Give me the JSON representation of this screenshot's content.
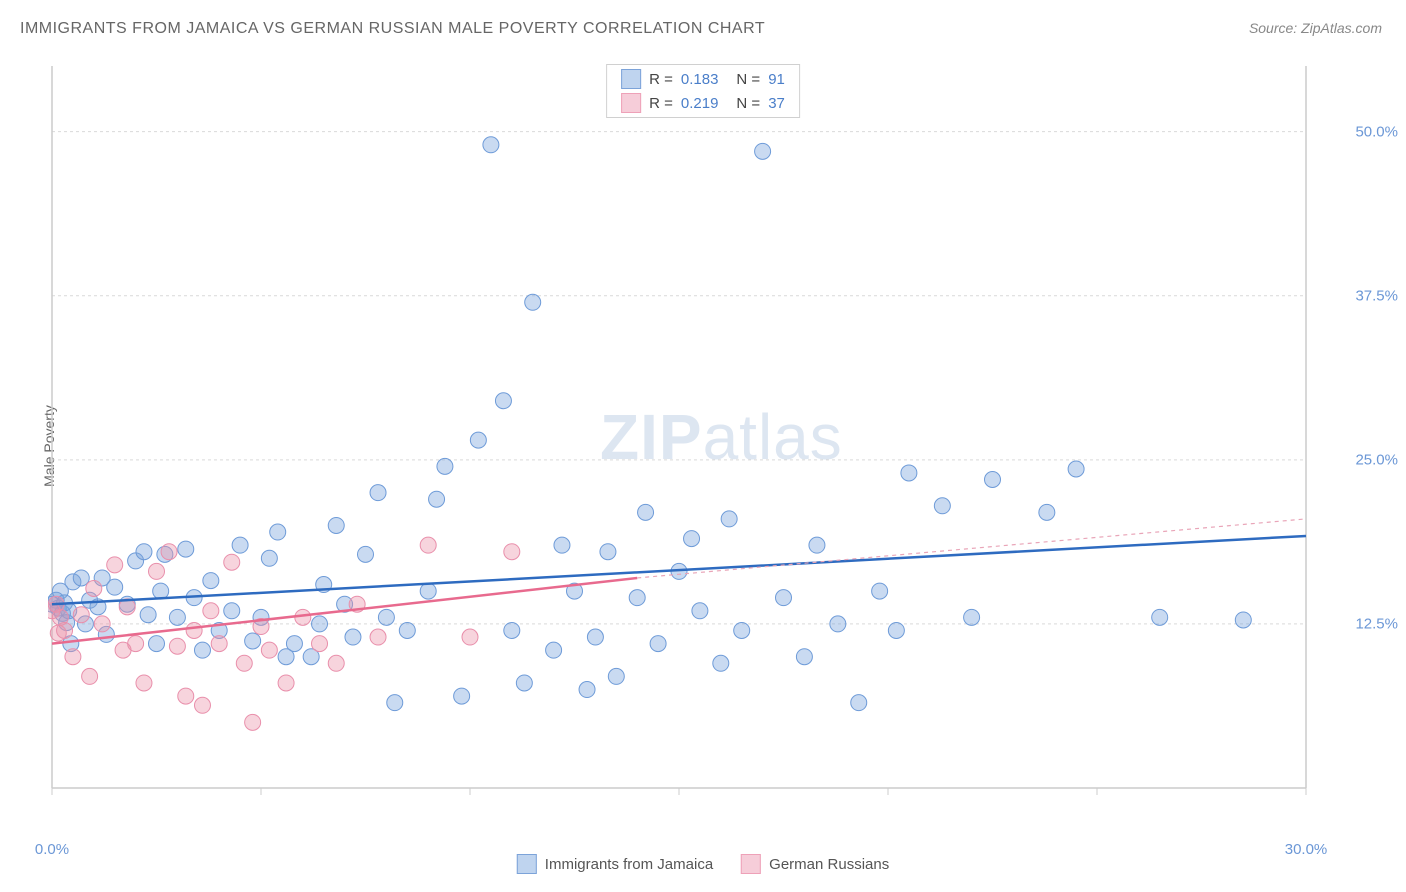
{
  "title": "IMMIGRANTS FROM JAMAICA VS GERMAN RUSSIAN MALE POVERTY CORRELATION CHART",
  "source": "Source: ZipAtlas.com",
  "y_axis_label": "Male Poverty",
  "watermark_bold": "ZIP",
  "watermark_rest": "atlas",
  "chart": {
    "type": "scatter",
    "xlim": [
      0,
      30
    ],
    "ylim": [
      0,
      55
    ],
    "x_ticks": [
      0,
      5,
      10,
      15,
      20,
      25,
      30
    ],
    "x_tick_labels": {
      "0": "0.0%",
      "30": "30.0%"
    },
    "y_grid": [
      12.5,
      25.0,
      37.5,
      50.0
    ],
    "y_tick_labels": {
      "12.5": "12.5%",
      "25.0": "25.0%",
      "37.5": "37.5%",
      "50.0": "50.0%"
    },
    "background_color": "#ffffff",
    "grid_color": "#d9d9d9",
    "axis_color": "#cccccc",
    "marker_radius": 8,
    "marker_stroke_width": 1,
    "series": [
      {
        "name": "Immigrants from Jamaica",
        "fill": "rgba(120,163,219,0.40)",
        "stroke": "#6e9bd8",
        "swatch_fill": "#bfd4ef",
        "swatch_stroke": "#7ca3d9",
        "R": "0.183",
        "N": "91",
        "line": {
          "x1": 0,
          "y1": 14.0,
          "x2": 30,
          "y2": 19.2,
          "color": "#2e6bc0",
          "width": 2.5,
          "dash": ""
        },
        "points": [
          [
            0.0,
            14.0
          ],
          [
            0.1,
            14.3
          ],
          [
            0.15,
            13.7
          ],
          [
            0.2,
            15.0
          ],
          [
            0.25,
            13.3
          ],
          [
            0.3,
            14.1
          ],
          [
            0.35,
            12.6
          ],
          [
            0.4,
            13.5
          ],
          [
            0.45,
            11.0
          ],
          [
            0.5,
            15.7
          ],
          [
            0.7,
            16.0
          ],
          [
            0.8,
            12.5
          ],
          [
            0.9,
            14.3
          ],
          [
            1.1,
            13.8
          ],
          [
            1.2,
            16.0
          ],
          [
            1.3,
            11.7
          ],
          [
            1.5,
            15.3
          ],
          [
            1.8,
            14.0
          ],
          [
            2.0,
            17.3
          ],
          [
            2.2,
            18.0
          ],
          [
            2.3,
            13.2
          ],
          [
            2.5,
            11.0
          ],
          [
            2.6,
            15.0
          ],
          [
            2.7,
            17.8
          ],
          [
            3.0,
            13.0
          ],
          [
            3.2,
            18.2
          ],
          [
            3.4,
            14.5
          ],
          [
            3.6,
            10.5
          ],
          [
            3.8,
            15.8
          ],
          [
            4.0,
            12.0
          ],
          [
            4.3,
            13.5
          ],
          [
            4.5,
            18.5
          ],
          [
            4.8,
            11.2
          ],
          [
            5.0,
            13.0
          ],
          [
            5.2,
            17.5
          ],
          [
            5.4,
            19.5
          ],
          [
            5.6,
            10.0
          ],
          [
            5.8,
            11.0
          ],
          [
            6.2,
            10.0
          ],
          [
            6.4,
            12.5
          ],
          [
            6.5,
            15.5
          ],
          [
            6.8,
            20.0
          ],
          [
            7.0,
            14.0
          ],
          [
            7.2,
            11.5
          ],
          [
            7.5,
            17.8
          ],
          [
            7.8,
            22.5
          ],
          [
            8.0,
            13.0
          ],
          [
            8.2,
            6.5
          ],
          [
            8.5,
            12.0
          ],
          [
            9.0,
            15.0
          ],
          [
            9.2,
            22.0
          ],
          [
            9.4,
            24.5
          ],
          [
            9.8,
            7.0
          ],
          [
            10.2,
            26.5
          ],
          [
            10.5,
            49.0
          ],
          [
            10.8,
            29.5
          ],
          [
            11.0,
            12.0
          ],
          [
            11.3,
            8.0
          ],
          [
            11.5,
            37.0
          ],
          [
            12.0,
            10.5
          ],
          [
            12.2,
            18.5
          ],
          [
            12.5,
            15.0
          ],
          [
            12.8,
            7.5
          ],
          [
            13.0,
            11.5
          ],
          [
            13.3,
            18.0
          ],
          [
            13.5,
            8.5
          ],
          [
            14.0,
            14.5
          ],
          [
            14.2,
            21.0
          ],
          [
            14.5,
            11.0
          ],
          [
            15.0,
            16.5
          ],
          [
            15.3,
            19.0
          ],
          [
            15.5,
            13.5
          ],
          [
            16.0,
            9.5
          ],
          [
            16.2,
            20.5
          ],
          [
            16.5,
            12.0
          ],
          [
            17.0,
            48.5
          ],
          [
            17.5,
            14.5
          ],
          [
            18.0,
            10.0
          ],
          [
            18.3,
            18.5
          ],
          [
            18.8,
            12.5
          ],
          [
            19.3,
            6.5
          ],
          [
            19.8,
            15.0
          ],
          [
            20.2,
            12.0
          ],
          [
            20.5,
            24.0
          ],
          [
            21.3,
            21.5
          ],
          [
            22.0,
            13.0
          ],
          [
            22.5,
            23.5
          ],
          [
            23.8,
            21.0
          ],
          [
            24.5,
            24.3
          ],
          [
            26.5,
            13.0
          ],
          [
            28.5,
            12.8
          ]
        ]
      },
      {
        "name": "German Russians",
        "fill": "rgba(235,148,170,0.40)",
        "stroke": "#e98fab",
        "swatch_fill": "#f6cdd9",
        "swatch_stroke": "#eea1b8",
        "R": "0.219",
        "N": "37",
        "line": {
          "x1": 0,
          "y1": 11.0,
          "x2": 14,
          "y2": 16.0,
          "color": "#e86a8e",
          "width": 2.5,
          "dash": ""
        },
        "line_ext": {
          "x1": 14,
          "y1": 16.0,
          "x2": 30,
          "y2": 20.5,
          "color": "#e9a5b8",
          "width": 1.2,
          "dash": "4 4"
        },
        "points": [
          [
            0.0,
            13.5
          ],
          [
            0.1,
            14.0
          ],
          [
            0.15,
            11.8
          ],
          [
            0.2,
            13.0
          ],
          [
            0.3,
            12.0
          ],
          [
            0.5,
            10.0
          ],
          [
            0.7,
            13.2
          ],
          [
            0.9,
            8.5
          ],
          [
            1.0,
            15.2
          ],
          [
            1.2,
            12.5
          ],
          [
            1.5,
            17.0
          ],
          [
            1.7,
            10.5
          ],
          [
            1.8,
            13.8
          ],
          [
            2.0,
            11.0
          ],
          [
            2.2,
            8.0
          ],
          [
            2.5,
            16.5
          ],
          [
            2.8,
            18.0
          ],
          [
            3.0,
            10.8
          ],
          [
            3.2,
            7.0
          ],
          [
            3.4,
            12.0
          ],
          [
            3.6,
            6.3
          ],
          [
            3.8,
            13.5
          ],
          [
            4.0,
            11.0
          ],
          [
            4.3,
            17.2
          ],
          [
            4.6,
            9.5
          ],
          [
            4.8,
            5.0
          ],
          [
            5.0,
            12.3
          ],
          [
            5.2,
            10.5
          ],
          [
            5.6,
            8.0
          ],
          [
            6.0,
            13.0
          ],
          [
            6.4,
            11.0
          ],
          [
            6.8,
            9.5
          ],
          [
            7.3,
            14.0
          ],
          [
            7.8,
            11.5
          ],
          [
            9.0,
            18.5
          ],
          [
            10.0,
            11.5
          ],
          [
            11.0,
            18.0
          ]
        ]
      }
    ]
  },
  "legend_bottom": [
    {
      "label": "Immigrants from Jamaica",
      "key": 0
    },
    {
      "label": "German Russians",
      "key": 1
    }
  ]
}
